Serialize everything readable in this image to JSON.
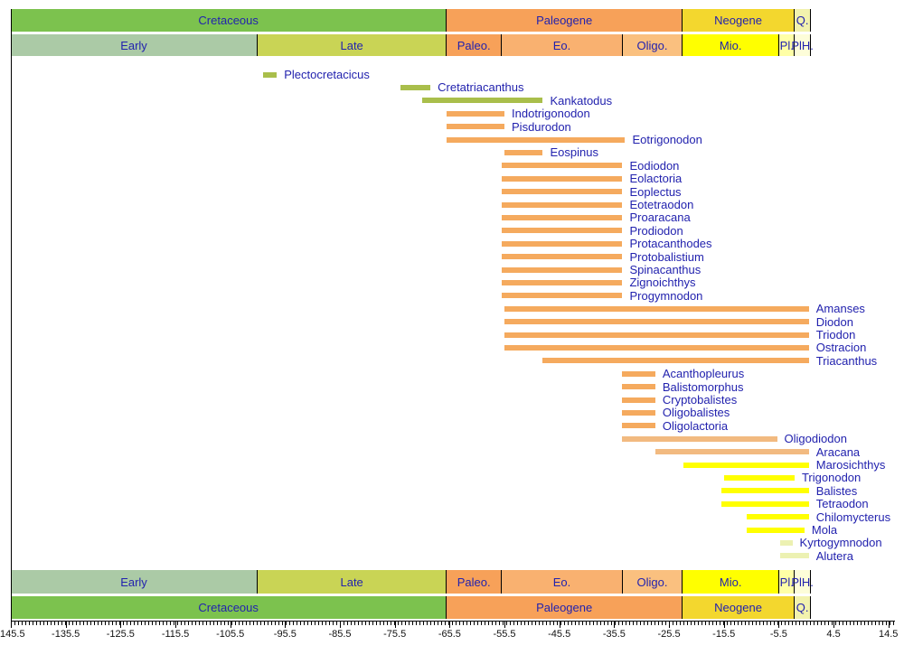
{
  "colors": {
    "label_text": "#2222ae",
    "axis_text": "#111111",
    "cretaceous": "#7cc24e",
    "early_cretaceous": "#abcaa6",
    "late_cretaceous": "#c9d455",
    "paleogene": "#f7a159",
    "paleocene": "#f7a159",
    "eocene": "#f9b170",
    "oligocene": "#fac07f",
    "neogene": "#f3d72e",
    "miocene": "#ffff00",
    "pliocene": "#ffffa6",
    "pleistocene_holocene": "#fdfdd9",
    "quaternary": "#f2f2ae",
    "bar_cretaceous_taxa": "#a9be4b",
    "bar_paleogene_taxa": "#f5aa5e",
    "bar_oligocene_taxa": "#f2ba80",
    "bar_neogene_taxa": "#ffff00",
    "bar_pliocene_taxa": "#ecf1b2"
  },
  "chart_data": {
    "type": "bar",
    "subtype": "horizontal-range-timeline (stratigraphic ranges of genera)",
    "title": "",
    "xlabel": "",
    "ylabel": "",
    "axis": {
      "unit": "Ma (millions of years, negative = before present)",
      "min": -145.5,
      "max": 15.7,
      "major_tick_step": 10,
      "minor_tick_step": 0.67,
      "major_ticks": [
        -145.5,
        -135.5,
        -125.5,
        -115.5,
        -105.5,
        -95.5,
        -85.5,
        -75.5,
        -65.5,
        -55.5,
        -45.5,
        -35.5,
        -25.5,
        -15.5,
        -5.5,
        4.5,
        14.5
      ],
      "tick_labels": [
        "-145.5",
        "-135.5",
        "-125.5",
        "-115.5",
        "-105.5",
        "-95.5",
        "-85.5",
        "-75.5",
        "-65.5",
        "-55.5",
        "-45.5",
        "-35.5",
        "-25.5",
        "-15.5",
        "-5.5",
        "4.5",
        "14.5"
      ]
    },
    "period_row": [
      {
        "label": "Cretaceous",
        "start": -145.5,
        "end": -66,
        "color": "#7cc24e"
      },
      {
        "label": "Paleogene",
        "start": -66,
        "end": -23.03,
        "color": "#f7a159"
      },
      {
        "label": "Neogene",
        "start": -23.03,
        "end": -2.58,
        "color": "#f3d72e"
      },
      {
        "label": "Q.",
        "start": -2.58,
        "end": 0.4,
        "color": "#f2f2ae"
      }
    ],
    "epoch_row": [
      {
        "label": "Early",
        "start": -145.5,
        "end": -100.5,
        "color": "#abcaa6"
      },
      {
        "label": "Late",
        "start": -100.5,
        "end": -66,
        "color": "#c9d455"
      },
      {
        "label": "Paleo.",
        "start": -66,
        "end": -56,
        "color": "#f7a159"
      },
      {
        "label": "Eo.",
        "start": -56,
        "end": -33.9,
        "color": "#f9b170"
      },
      {
        "label": "Oligo.",
        "start": -33.9,
        "end": -23.03,
        "color": "#fac07f"
      },
      {
        "label": "Mio.",
        "start": -23.03,
        "end": -5.33,
        "color": "#ffff00"
      },
      {
        "label": "Pl.",
        "start": -5.33,
        "end": -2.58,
        "color": "#ffffa6"
      },
      {
        "label": "PlH.",
        "start": -2.58,
        "end": 0.4,
        "color": "#fdfdd9"
      }
    ],
    "taxa": [
      {
        "name": "Plectocretacicus",
        "start": -99.5,
        "end": -97,
        "color": "#a9be4b"
      },
      {
        "name": "Cretatriacanthus",
        "start": -74.5,
        "end": -69,
        "color": "#a9be4b"
      },
      {
        "name": "Kankatodus",
        "start": -70.5,
        "end": -48.5,
        "color": "#a9be4b"
      },
      {
        "name": "Indotrigonodon",
        "start": -66,
        "end": -55.5,
        "color": "#f5aa5e"
      },
      {
        "name": "Pisdurodon",
        "start": -66,
        "end": -55.5,
        "color": "#f5aa5e"
      },
      {
        "name": "Eotrigonodon",
        "start": -66,
        "end": -33.5,
        "color": "#f5aa5e"
      },
      {
        "name": "Eospinus",
        "start": -55.5,
        "end": -48.5,
        "color": "#f5aa5e"
      },
      {
        "name": "Eodiodon",
        "start": -56,
        "end": -34,
        "color": "#f5aa5e"
      },
      {
        "name": "Eolactoria",
        "start": -56,
        "end": -34,
        "color": "#f5aa5e"
      },
      {
        "name": "Eoplectus",
        "start": -56,
        "end": -34,
        "color": "#f5aa5e"
      },
      {
        "name": "Eotetraodon",
        "start": -56,
        "end": -34,
        "color": "#f5aa5e"
      },
      {
        "name": "Proaracana",
        "start": -56,
        "end": -34,
        "color": "#f5aa5e"
      },
      {
        "name": "Prodiodon",
        "start": -56,
        "end": -34,
        "color": "#f5aa5e"
      },
      {
        "name": "Protacanthodes",
        "start": -56,
        "end": -34,
        "color": "#f5aa5e"
      },
      {
        "name": "Protobalistium",
        "start": -56,
        "end": -34,
        "color": "#f5aa5e"
      },
      {
        "name": "Spinacanthus",
        "start": -56,
        "end": -34,
        "color": "#f5aa5e"
      },
      {
        "name": "Zignoichthys",
        "start": -56,
        "end": -34,
        "color": "#f5aa5e"
      },
      {
        "name": "Progymnodon",
        "start": -56,
        "end": -34,
        "color": "#f5aa5e"
      },
      {
        "name": "Amanses",
        "start": -55.5,
        "end": 0,
        "color": "#f5aa5e"
      },
      {
        "name": "Diodon",
        "start": -55.5,
        "end": 0,
        "color": "#f5aa5e"
      },
      {
        "name": "Triodon",
        "start": -55.5,
        "end": 0,
        "color": "#f5aa5e"
      },
      {
        "name": "Ostracion",
        "start": -55.5,
        "end": 0,
        "color": "#f5aa5e"
      },
      {
        "name": "Triacanthus",
        "start": -48.5,
        "end": 0,
        "color": "#f5aa5e"
      },
      {
        "name": "Acanthopleurus",
        "start": -34,
        "end": -28,
        "color": "#f5aa5e"
      },
      {
        "name": "Balistomorphus",
        "start": -34,
        "end": -28,
        "color": "#f5aa5e"
      },
      {
        "name": "Cryptobalistes",
        "start": -34,
        "end": -28,
        "color": "#f5aa5e"
      },
      {
        "name": "Oligobalistes",
        "start": -34,
        "end": -28,
        "color": "#f5aa5e"
      },
      {
        "name": "Oligolactoria",
        "start": -34,
        "end": -28,
        "color": "#f5aa5e"
      },
      {
        "name": "Oligodiodon",
        "start": -34,
        "end": -5.8,
        "color": "#f2ba80"
      },
      {
        "name": "Aracana",
        "start": -28,
        "end": 0,
        "color": "#f2ba80"
      },
      {
        "name": "Marosichthys",
        "start": -22.8,
        "end": 0,
        "color": "#ffff00"
      },
      {
        "name": "Trigonodon",
        "start": -15.5,
        "end": -2.6,
        "color": "#ffff00"
      },
      {
        "name": "Balistes",
        "start": -16,
        "end": 0,
        "color": "#ffff00"
      },
      {
        "name": "Tetraodon",
        "start": -16,
        "end": 0,
        "color": "#ffff00"
      },
      {
        "name": "Chilomycterus",
        "start": -11.3,
        "end": 0,
        "color": "#ffff00"
      },
      {
        "name": "Mola",
        "start": -11.3,
        "end": -0.8,
        "color": "#ffff00"
      },
      {
        "name": "Kyrtogymnodon",
        "start": -5.3,
        "end": -3,
        "color": "#ecf1b2"
      },
      {
        "name": "Alutera",
        "start": -5.3,
        "end": 0,
        "color": "#ecf1b2"
      }
    ]
  }
}
